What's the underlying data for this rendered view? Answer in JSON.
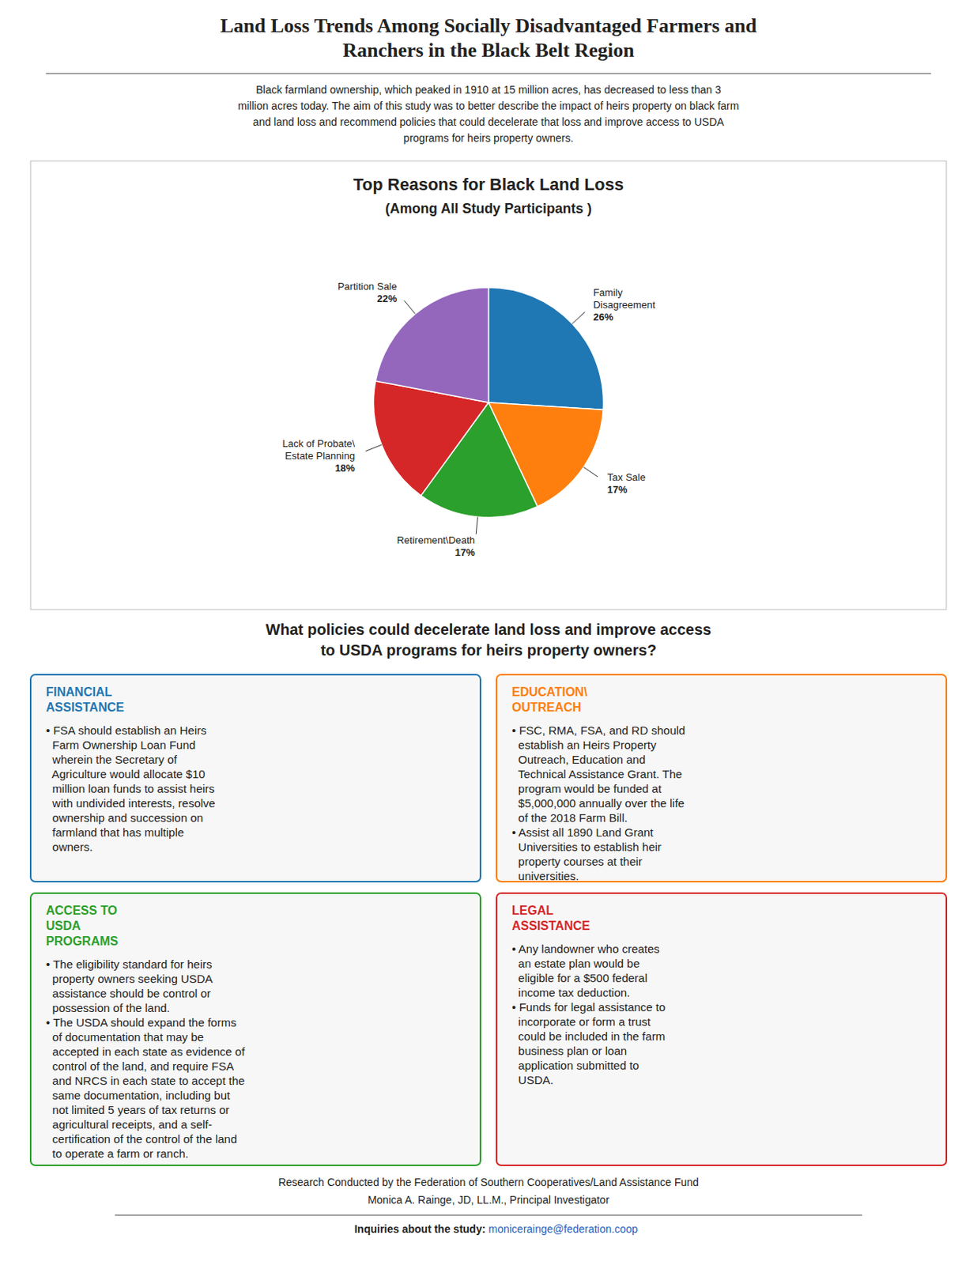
{
  "chart_data": {
    "type": "pie",
    "title": "Top Reasons for Black Land Loss",
    "subtitle": "(Among All Study Participants )",
    "categories": [
      "Family\nDisagreement",
      "Tax Sale",
      "Retirement\\Death",
      "Lack of Probate\\\nEstate Planning",
      "Partition Sale"
    ],
    "values": [
      26,
      17,
      17,
      18,
      22
    ],
    "value_labels": [
      "26%",
      "17%",
      "17%",
      "18%",
      "22%"
    ],
    "data_labels": true,
    "annotations": [
      "Land Loss Trends Among Socially Disadvantaged Farmers and\nRanchers in the Black Belt Region",
      "Black farmland ownership, which peaked in 1910 at 15 million acres, has decreased to less than 3\nmillion acres today. The aim of this study was to better describe the impact of heirs property on black farm\nand land loss and recommend policies that could decelerate that loss and improve access to USDA\nprograms for heirs property owners.",
      "What policies could decelerate land loss and improve access\nto USDA programs for heirs property owners?",
      "FINANCIAL\nASSISTANCE",
      "• FSA should establish an Heirs\n  Farm Ownership Loan Fund\n  wherein the Secretary of\n  Agriculture would allocate $10\n  million loan funds to assist heirs\n  with undivided interests, resolve\n  ownership and succession on\n  farmland that has multiple\n  owners.",
      "EDUCATION\\\nOUTREACH",
      "• FSC, RMA, FSA, and RD should\n  establish an Heirs Property\n  Outreach, Education and\n  Technical Assistance Grant. The\n  program would be funded at\n  $5,000,000 annually over the life\n  of the 2018 Farm Bill.\n• Assist all 1890 Land Grant\n  Universities to establish heir\n  property courses at their\n  universities.",
      "ACCESS TO\nUSDA\nPROGRAMS",
      "• The eligibility standard for heirs\n  property owners seeking USDA\n  assistance should be control or\n  possession of the land.\n• The USDA should expand the forms\n  of documentation that may be\n  accepted in each state as evidence of\n  control of the land, and require FSA\n  and NRCS in each state to accept the\n  same documentation, including but\n  not limited 5 years of tax returns or\n  agricultural receipts, and a self-\n  certification of the control of the land\n  to operate a farm or ranch.",
      "LEGAL\nASSISTANCE",
      "• Any landowner who creates\n  an estate plan would be\n  eligible for a $500 federal\n  income tax deduction.\n• Funds for legal assistance to\n  incorporate or form a trust\n  could be included in the farm\n  business plan or loan\n  application submitted to\n  USDA.",
      "Research Conducted by the Federation of Southern Cooperatives/Land Assistance Fund",
      "Monica A. Rainge, JD, LL.M., Principal Investigator",
      "Inquiries about the study: ",
      "monicerainge@federation.coop"
    ]
  }
}
